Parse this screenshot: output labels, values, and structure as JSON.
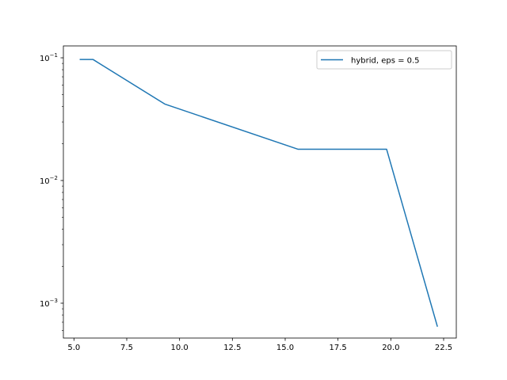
{
  "chart_data": {
    "type": "line",
    "title": "",
    "xlabel": "",
    "ylabel": "",
    "xscale": "linear",
    "yscale": "log",
    "xlim": [
      4.5,
      23.1
    ],
    "ylim": [
      0.00052,
      0.125
    ],
    "grid": false,
    "legend_position": "top-right",
    "x_ticks": [
      {
        "value": 5.0,
        "label": "5.0"
      },
      {
        "value": 7.5,
        "label": "7.5"
      },
      {
        "value": 10.0,
        "label": "10.0"
      },
      {
        "value": 12.5,
        "label": "12.5"
      },
      {
        "value": 15.0,
        "label": "15.0"
      },
      {
        "value": 17.5,
        "label": "17.5"
      },
      {
        "value": 20.0,
        "label": "20.0"
      },
      {
        "value": 22.5,
        "label": "22.5"
      }
    ],
    "y_ticks": [
      {
        "value": 0.1,
        "base": "10",
        "exp": "−1"
      },
      {
        "value": 0.01,
        "base": "10",
        "exp": "−2"
      },
      {
        "value": 0.001,
        "base": "10",
        "exp": "−3"
      }
    ],
    "series": [
      {
        "name": "hybrid, eps = 0.5",
        "color": "#1f77b4",
        "x": [
          5.3,
          5.9,
          9.3,
          15.6,
          19.8,
          22.2
        ],
        "y": [
          0.097,
          0.097,
          0.042,
          0.018,
          0.018,
          0.00065
        ]
      }
    ]
  }
}
